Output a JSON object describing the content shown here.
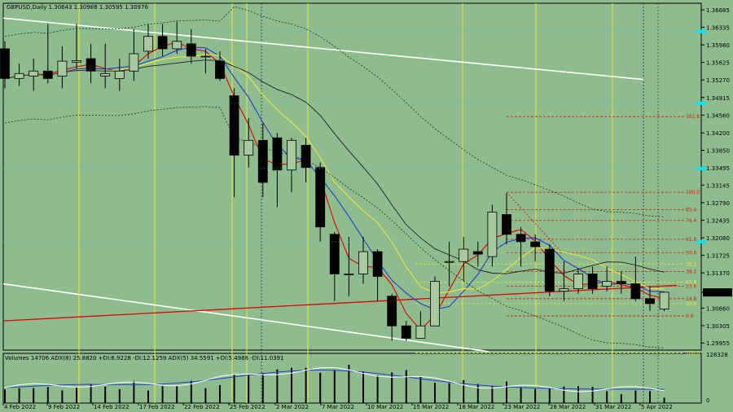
{
  "header": {
    "symbol_line": "GBPUSD,Daily  1.30643 1.30988 1.30595 1.30976"
  },
  "indicator": {
    "line": "Volumes 14706  ADX(8) 25.8820 +DI:6.9228 -DI:12.1259  ADX(5) 34.5591 +DI:5.4988 -DI:11.0391",
    "scale_top": "128328",
    "scale_bottom": "0"
  },
  "last_price_label": "1.30976",
  "colors": {
    "background": "#8fbc8f",
    "bull_body": "#a8c8a0",
    "bear_body": "#000000",
    "red_line": "#e00000",
    "blue_line": "#1f3fd0",
    "yellow_line": "#e8e840",
    "black_line": "#202020",
    "channel_line": "#ffffff",
    "cyan_marker": "#00e5ff",
    "fib_color": "#cc2200"
  },
  "chart_data": {
    "type": "candlestick",
    "price_axis_labels": [
      "1.36685",
      "1.36335",
      "1.35980",
      "1.35625",
      "1.35270",
      "1.34915",
      "1.34560",
      "1.34200",
      "1.33850",
      "1.33495",
      "1.33145",
      "1.32790",
      "1.32435",
      "1.32080",
      "1.31725",
      "1.31370",
      "1.30976",
      "1.30660",
      "1.30305",
      "1.29955"
    ],
    "ylim": [
      1.2981,
      1.3682
    ],
    "x_labels": [
      "4 Feb 2022",
      "9 Feb 2022",
      "14 Feb 2022",
      "17 Feb 2022",
      "22 Feb 2022",
      "25 Feb 2022",
      "2 Mar 2022",
      "7 Mar 2022",
      "10 Mar 2022",
      "15 Mar 2022",
      "18 Mar 2022",
      "23 Mar 2022",
      "28 Mar 2022",
      "31 Mar 2022",
      "5 Apr 2022"
    ],
    "candles": [
      {
        "o": 1.359,
        "h": 1.3605,
        "l": 1.351,
        "c": 1.353
      },
      {
        "o": 1.353,
        "h": 1.356,
        "l": 1.3515,
        "c": 1.354
      },
      {
        "o": 1.3535,
        "h": 1.357,
        "l": 1.3505,
        "c": 1.3545
      },
      {
        "o": 1.3545,
        "h": 1.364,
        "l": 1.352,
        "c": 1.353
      },
      {
        "o": 1.3535,
        "h": 1.3595,
        "l": 1.351,
        "c": 1.3565
      },
      {
        "o": 1.3563,
        "h": 1.364,
        "l": 1.355,
        "c": 1.3566
      },
      {
        "o": 1.357,
        "h": 1.36,
        "l": 1.352,
        "c": 1.3545
      },
      {
        "o": 1.3535,
        "h": 1.36,
        "l": 1.351,
        "c": 1.354
      },
      {
        "o": 1.353,
        "h": 1.357,
        "l": 1.3505,
        "c": 1.3545
      },
      {
        "o": 1.3545,
        "h": 1.363,
        "l": 1.3525,
        "c": 1.358
      },
      {
        "o": 1.3585,
        "h": 1.364,
        "l": 1.357,
        "c": 1.3615
      },
      {
        "o": 1.3615,
        "h": 1.364,
        "l": 1.3575,
        "c": 1.359
      },
      {
        "o": 1.359,
        "h": 1.3645,
        "l": 1.358,
        "c": 1.3605
      },
      {
        "o": 1.36,
        "h": 1.363,
        "l": 1.356,
        "c": 1.3575
      },
      {
        "o": 1.3575,
        "h": 1.359,
        "l": 1.354,
        "c": 1.3575
      },
      {
        "o": 1.3565,
        "h": 1.3585,
        "l": 1.3525,
        "c": 1.353
      },
      {
        "o": 1.3495,
        "h": 1.351,
        "l": 1.329,
        "c": 1.3375
      },
      {
        "o": 1.3375,
        "h": 1.345,
        "l": 1.335,
        "c": 1.3405
      },
      {
        "o": 1.3405,
        "h": 1.344,
        "l": 1.329,
        "c": 1.332
      },
      {
        "o": 1.341,
        "h": 1.342,
        "l": 1.327,
        "c": 1.3345
      },
      {
        "o": 1.3345,
        "h": 1.341,
        "l": 1.33,
        "c": 1.3405
      },
      {
        "o": 1.3395,
        "h": 1.341,
        "l": 1.332,
        "c": 1.335
      },
      {
        "o": 1.335,
        "h": 1.336,
        "l": 1.32,
        "c": 1.323
      },
      {
        "o": 1.3215,
        "h": 1.322,
        "l": 1.308,
        "c": 1.3135
      },
      {
        "o": 1.3135,
        "h": 1.321,
        "l": 1.309,
        "c": 1.3135
      },
      {
        "o": 1.3135,
        "h": 1.321,
        "l": 1.3115,
        "c": 1.318
      },
      {
        "o": 1.318,
        "h": 1.3185,
        "l": 1.308,
        "c": 1.313
      },
      {
        "o": 1.309,
        "h": 1.3095,
        "l": 1.3,
        "c": 1.303
      },
      {
        "o": 1.303,
        "h": 1.304,
        "l": 1.3,
        "c": 1.3005
      },
      {
        "o": 1.3005,
        "h": 1.306,
        "l": 1.3005,
        "c": 1.303
      },
      {
        "o": 1.303,
        "h": 1.313,
        "l": 1.303,
        "c": 1.312
      },
      {
        "o": 1.316,
        "h": 1.32,
        "l": 1.311,
        "c": 1.316
      },
      {
        "o": 1.316,
        "h": 1.321,
        "l": 1.312,
        "c": 1.3185
      },
      {
        "o": 1.318,
        "h": 1.32,
        "l": 1.315,
        "c": 1.3175
      },
      {
        "o": 1.317,
        "h": 1.3275,
        "l": 1.315,
        "c": 1.326
      },
      {
        "o": 1.3255,
        "h": 1.3298,
        "l": 1.3195,
        "c": 1.3215
      },
      {
        "o": 1.3215,
        "h": 1.323,
        "l": 1.315,
        "c": 1.32
      },
      {
        "o": 1.32,
        "h": 1.3215,
        "l": 1.316,
        "c": 1.319
      },
      {
        "o": 1.3185,
        "h": 1.3195,
        "l": 1.309,
        "c": 1.31
      },
      {
        "o": 1.31,
        "h": 1.316,
        "l": 1.308,
        "c": 1.3105
      },
      {
        "o": 1.3105,
        "h": 1.3145,
        "l": 1.3095,
        "c": 1.3135
      },
      {
        "o": 1.3135,
        "h": 1.315,
        "l": 1.3095,
        "c": 1.3105
      },
      {
        "o": 1.311,
        "h": 1.315,
        "l": 1.31,
        "c": 1.312
      },
      {
        "o": 1.312,
        "h": 1.314,
        "l": 1.3095,
        "c": 1.3115
      },
      {
        "o": 1.3115,
        "h": 1.317,
        "l": 1.308,
        "c": 1.3085
      },
      {
        "o": 1.3085,
        "h": 1.311,
        "l": 1.306,
        "c": 1.3075
      },
      {
        "o": 1.3064,
        "h": 1.3099,
        "l": 1.306,
        "c": 1.3098
      }
    ],
    "volumes": [
      0.36,
      0.39,
      0.39,
      0.42,
      0.33,
      0.41,
      0.5,
      0.43,
      0.36,
      0.58,
      0.33,
      0.44,
      0.46,
      0.58,
      0.39,
      0.47,
      0.74,
      0.72,
      0.79,
      0.88,
      0.92,
      0.92,
      0.79,
      0.86,
      1.0,
      0.83,
      0.72,
      0.8,
      0.86,
      0.7,
      0.53,
      0.52,
      0.6,
      0.5,
      0.44,
      0.56,
      0.4,
      0.37,
      0.38,
      0.43,
      0.44,
      0.42,
      0.31,
      0.23,
      0.33,
      0.31,
      0.14
    ],
    "fib_levels": [
      {
        "label": "161.8",
        "value": 1.3453,
        "color": "#cc2200"
      },
      {
        "label": "100.0",
        "value": 1.33,
        "color": "#cc2200"
      },
      {
        "label": "85.4",
        "value": 1.3265,
        "color": "#cc2200"
      },
      {
        "label": "76.4",
        "value": 1.3243,
        "color": "#cc2200"
      },
      {
        "label": "61.8",
        "value": 1.3205,
        "color": "#cc2200"
      },
      {
        "label": "50.0",
        "value": 1.3178,
        "color": "#cc2200"
      },
      {
        "label": "38.2",
        "value": 1.3155,
        "color": "#e8e840"
      },
      {
        "label": "38.2",
        "value": 1.314,
        "color": "#cc2200"
      },
      {
        "label": "61.8",
        "value": 1.3118,
        "color": "#e8e840"
      },
      {
        "label": "23.6",
        "value": 1.311,
        "color": "#cc2200"
      },
      {
        "label": "14.6",
        "value": 1.3085,
        "color": "#cc2200"
      },
      {
        "label": "50.0",
        "value": 1.3075,
        "color": "#e8e840"
      },
      {
        "label": "0.0",
        "value": 1.305,
        "color": "#cc2200"
      },
      {
        "label": "100.0",
        "value": 1.2975,
        "color": "#e8e840"
      }
    ]
  }
}
